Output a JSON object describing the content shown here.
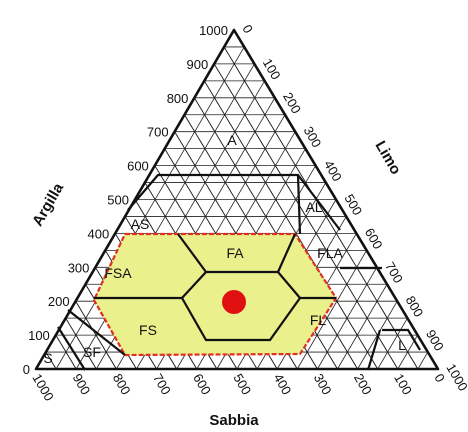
{
  "axes": {
    "clay": "Argilla",
    "silt": "Limo",
    "sand": "Sabbia"
  },
  "ticks": {
    "left": [
      "1000",
      "900",
      "800",
      "700",
      "600",
      "500",
      "400",
      "300",
      "200",
      "100",
      "0"
    ],
    "right": [
      "0",
      "100",
      "200",
      "300",
      "400",
      "500",
      "600",
      "700",
      "800",
      "900",
      "1000"
    ],
    "bottom": [
      "1000",
      "900",
      "800",
      "700",
      "600",
      "500",
      "400",
      "300",
      "200",
      "100",
      "0"
    ]
  },
  "regions": [
    {
      "label": "A"
    },
    {
      "label": "AS"
    },
    {
      "label": "AL"
    },
    {
      "label": "FA"
    },
    {
      "label": "FLA"
    },
    {
      "label": "FSA"
    },
    {
      "label": "FS"
    },
    {
      "label": "FL"
    },
    {
      "label": "L"
    },
    {
      "label": "S"
    },
    {
      "label": "SF"
    }
  ],
  "highlight_zone_color": "#eaf08c",
  "highlight_border_color": "#e03020",
  "sample_point_color": "#e01010",
  "grid_color": "#222222"
}
